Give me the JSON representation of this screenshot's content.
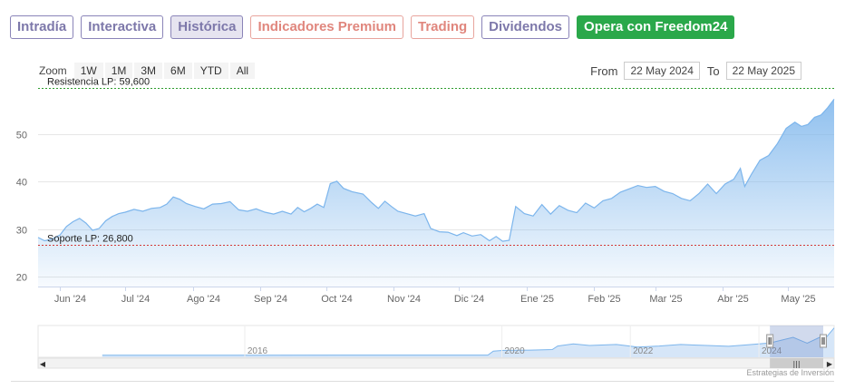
{
  "tabs": [
    {
      "label": "Intradía",
      "active": false,
      "style": "normal"
    },
    {
      "label": "Interactiva",
      "active": false,
      "style": "normal"
    },
    {
      "label": "Histórica",
      "active": true,
      "style": "normal"
    },
    {
      "label": "Indicadores Premium",
      "active": false,
      "style": "premium"
    },
    {
      "label": "Trading",
      "active": false,
      "style": "premium"
    },
    {
      "label": "Dividendos",
      "active": false,
      "style": "normal"
    },
    {
      "label": "Opera con Freedom24",
      "active": false,
      "style": "cta"
    }
  ],
  "zoom": {
    "label": "Zoom",
    "buttons": [
      "1W",
      "1M",
      "3M",
      "6M",
      "YTD",
      "All"
    ]
  },
  "range": {
    "from_label": "From",
    "from_value": "22 May 2024",
    "to_label": "To",
    "to_value": "22 May 2025"
  },
  "credits": "Estrategias de Inversión",
  "colors": {
    "series": "#7cb5ec",
    "resistance": "#2e9c2e",
    "support": "#d43a3a",
    "tab": "#7d78aa",
    "premium": "#e0867d",
    "cta": "#2aa84a"
  },
  "chart_data": {
    "type": "area",
    "x_start": "2024-05-22",
    "x_end": "2025-05-22",
    "ylim": [
      18,
      61
    ],
    "y_ticks": [
      20,
      30,
      40,
      50
    ],
    "x_tick_labels": [
      "Jun '24",
      "Jul '24",
      "Ago '24",
      "Sep '24",
      "Oct '24",
      "Nov '24",
      "Dic '24",
      "Ene '25",
      "Feb '25",
      "Mar '25",
      "Abr '25",
      "May '25"
    ],
    "x_tick_dates": [
      "2024-06-01",
      "2024-07-01",
      "2024-08-01",
      "2024-09-01",
      "2024-10-01",
      "2024-11-01",
      "2024-12-01",
      "2025-01-01",
      "2025-02-01",
      "2025-03-01",
      "2025-04-01",
      "2025-05-01"
    ],
    "lines": [
      {
        "label": "Resistencia LP: 59,600",
        "value": 59.6,
        "color": "#2e9c2e"
      },
      {
        "label": "Soporte LP: 26,800",
        "value": 26.8,
        "color": "#d43a3a"
      }
    ],
    "series": [
      {
        "points": [
          [
            "2024-05-22",
            28.3
          ],
          [
            "2024-05-25",
            27.6
          ],
          [
            "2024-05-28",
            27.9
          ],
          [
            "2024-06-01",
            28.8
          ],
          [
            "2024-06-04",
            30.6
          ],
          [
            "2024-06-07",
            31.6
          ],
          [
            "2024-06-10",
            32.3
          ],
          [
            "2024-06-13",
            31.3
          ],
          [
            "2024-06-16",
            29.8
          ],
          [
            "2024-06-19",
            30.2
          ],
          [
            "2024-06-22",
            31.8
          ],
          [
            "2024-06-25",
            32.7
          ],
          [
            "2024-06-28",
            33.3
          ],
          [
            "2024-07-01",
            33.6
          ],
          [
            "2024-07-05",
            34.2
          ],
          [
            "2024-07-09",
            33.8
          ],
          [
            "2024-07-13",
            34.4
          ],
          [
            "2024-07-17",
            34.6
          ],
          [
            "2024-07-20",
            35.3
          ],
          [
            "2024-07-23",
            36.8
          ],
          [
            "2024-07-26",
            36.3
          ],
          [
            "2024-07-29",
            35.4
          ],
          [
            "2024-08-02",
            34.8
          ],
          [
            "2024-08-06",
            34.3
          ],
          [
            "2024-08-10",
            35.3
          ],
          [
            "2024-08-14",
            35.4
          ],
          [
            "2024-08-18",
            35.8
          ],
          [
            "2024-08-22",
            34.1
          ],
          [
            "2024-08-26",
            33.8
          ],
          [
            "2024-08-30",
            34.3
          ],
          [
            "2024-09-03",
            33.6
          ],
          [
            "2024-09-07",
            33.2
          ],
          [
            "2024-09-11",
            33.8
          ],
          [
            "2024-09-15",
            33.2
          ],
          [
            "2024-09-18",
            34.6
          ],
          [
            "2024-09-21",
            33.7
          ],
          [
            "2024-09-24",
            34.4
          ],
          [
            "2024-09-27",
            35.3
          ],
          [
            "2024-09-30",
            34.6
          ],
          [
            "2024-10-03",
            39.6
          ],
          [
            "2024-10-06",
            40.1
          ],
          [
            "2024-10-09",
            38.6
          ],
          [
            "2024-10-13",
            37.9
          ],
          [
            "2024-10-18",
            37.4
          ],
          [
            "2024-10-22",
            35.6
          ],
          [
            "2024-10-25",
            34.4
          ],
          [
            "2024-10-28",
            35.9
          ],
          [
            "2024-10-31",
            34.8
          ],
          [
            "2024-11-03",
            33.8
          ],
          [
            "2024-11-07",
            33.3
          ],
          [
            "2024-11-11",
            32.8
          ],
          [
            "2024-11-15",
            33.3
          ],
          [
            "2024-11-18",
            30.2
          ],
          [
            "2024-11-22",
            29.5
          ],
          [
            "2024-11-26",
            29.4
          ],
          [
            "2024-11-30",
            28.7
          ],
          [
            "2024-12-03",
            29.3
          ],
          [
            "2024-12-07",
            28.6
          ],
          [
            "2024-12-11",
            28.9
          ],
          [
            "2024-12-15",
            27.6
          ],
          [
            "2024-12-18",
            28.5
          ],
          [
            "2024-12-21",
            27.5
          ],
          [
            "2024-12-24",
            27.7
          ],
          [
            "2024-12-27",
            34.8
          ],
          [
            "2024-12-31",
            33.3
          ],
          [
            "2025-01-04",
            32.8
          ],
          [
            "2025-01-08",
            35.2
          ],
          [
            "2025-01-12",
            33.2
          ],
          [
            "2025-01-16",
            35.0
          ],
          [
            "2025-01-20",
            34.0
          ],
          [
            "2025-01-24",
            33.5
          ],
          [
            "2025-01-28",
            35.5
          ],
          [
            "2025-02-01",
            34.5
          ],
          [
            "2025-02-05",
            36.0
          ],
          [
            "2025-02-09",
            36.5
          ],
          [
            "2025-02-13",
            37.8
          ],
          [
            "2025-02-17",
            38.5
          ],
          [
            "2025-02-21",
            39.2
          ],
          [
            "2025-02-25",
            38.8
          ],
          [
            "2025-03-01",
            39.0
          ],
          [
            "2025-03-05",
            38.0
          ],
          [
            "2025-03-09",
            37.5
          ],
          [
            "2025-03-13",
            36.5
          ],
          [
            "2025-03-17",
            36.0
          ],
          [
            "2025-03-21",
            37.5
          ],
          [
            "2025-03-25",
            39.5
          ],
          [
            "2025-03-29",
            37.5
          ],
          [
            "2025-04-02",
            39.5
          ],
          [
            "2025-04-06",
            40.5
          ],
          [
            "2025-04-09",
            42.8
          ],
          [
            "2025-04-11",
            39.0
          ],
          [
            "2025-04-14",
            41.5
          ],
          [
            "2025-04-18",
            44.5
          ],
          [
            "2025-04-22",
            45.5
          ],
          [
            "2025-04-26",
            48.0
          ],
          [
            "2025-04-30",
            51.2
          ],
          [
            "2025-05-04",
            52.5
          ],
          [
            "2025-05-07",
            51.6
          ],
          [
            "2025-05-10",
            52.0
          ],
          [
            "2025-05-13",
            53.5
          ],
          [
            "2025-05-16",
            54.0
          ],
          [
            "2025-05-19",
            55.5
          ],
          [
            "2025-05-22",
            57.3
          ]
        ]
      }
    ],
    "navigator": {
      "x_labels": [
        "2016",
        "2020",
        "2022",
        "2024"
      ],
      "points": [
        [
          "2014-01-01",
          4.0
        ],
        [
          "2016-01-01",
          4.1
        ],
        [
          "2018-01-01",
          4.2
        ],
        [
          "2019-06-01",
          4.2
        ],
        [
          "2020-01-01",
          4.3
        ],
        [
          "2020-02-01",
          12.0
        ],
        [
          "2020-04-01",
          13.5
        ],
        [
          "2020-09-01",
          14.0
        ],
        [
          "2021-01-01",
          15.0
        ],
        [
          "2021-02-01",
          22.0
        ],
        [
          "2021-05-01",
          26.0
        ],
        [
          "2021-08-01",
          23.0
        ],
        [
          "2022-01-01",
          25.0
        ],
        [
          "2022-05-01",
          20.0
        ],
        [
          "2022-09-01",
          22.0
        ],
        [
          "2023-01-01",
          25.0
        ],
        [
          "2023-06-01",
          23.0
        ],
        [
          "2023-10-01",
          21.5
        ],
        [
          "2024-01-01",
          24.0
        ],
        [
          "2024-05-22",
          28.0
        ],
        [
          "2024-10-01",
          39.0
        ],
        [
          "2024-12-20",
          27.5
        ],
        [
          "2025-03-01",
          39.0
        ],
        [
          "2025-04-10",
          40.0
        ],
        [
          "2025-05-22",
          57.3
        ]
      ]
    }
  }
}
